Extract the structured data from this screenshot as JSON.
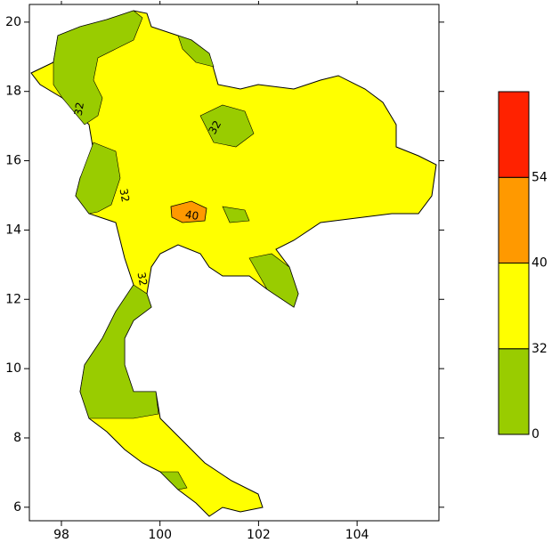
{
  "map": {
    "xlim": [
      97.35,
      105.66
    ],
    "ylim": [
      5.61,
      20.51
    ],
    "xticks": [
      98,
      100,
      102,
      104
    ],
    "yticks": [
      6,
      8,
      10,
      12,
      14,
      16,
      18,
      20
    ],
    "colorbar": {
      "levels": [
        0,
        32,
        40,
        54
      ],
      "colors": [
        "#99cc00",
        "#ffff00",
        "#ff9900",
        "#ff2200"
      ]
    },
    "contour_labels": [
      "32",
      "32",
      "32",
      "32",
      "40"
    ]
  }
}
